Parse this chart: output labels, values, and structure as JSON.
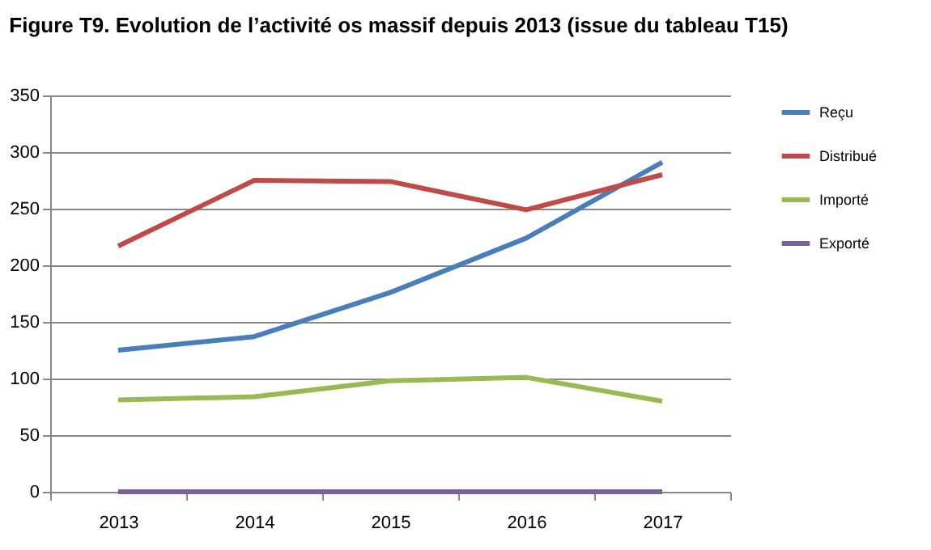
{
  "chart_data": {
    "type": "line",
    "title": "Figure T9. Evolution de l’activité os massif depuis 2013 (issue du tableau T15)",
    "categories": [
      "2013",
      "2014",
      "2015",
      "2016",
      "2017"
    ],
    "series": [
      {
        "name": "Reçu",
        "color": "#4a7ebb",
        "values": [
          125,
          137,
          176,
          224,
          291
        ]
      },
      {
        "name": "Distribué",
        "color": "#be4b48",
        "values": [
          217,
          275,
          274,
          249,
          280
        ]
      },
      {
        "name": "Importé",
        "color": "#98b954",
        "values": [
          81,
          84,
          98,
          101,
          80
        ]
      },
      {
        "name": "Exporté",
        "color": "#7d60a0",
        "values": [
          0,
          0,
          0,
          0,
          0
        ]
      }
    ],
    "ylim": [
      0,
      350
    ],
    "yticks": [
      0,
      50,
      100,
      150,
      200,
      250,
      300,
      350
    ],
    "grid": "y",
    "legend": "right",
    "marker": "none",
    "line_style": "solid"
  }
}
